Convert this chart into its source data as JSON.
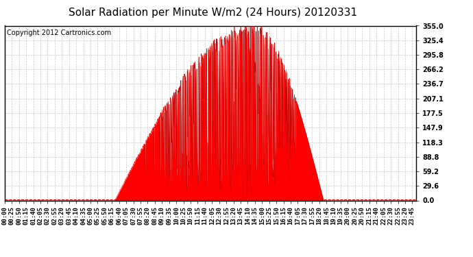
{
  "title": "Solar Radiation per Minute W/m2 (24 Hours) 20120331",
  "copyright": "Copyright 2012 Cartronics.com",
  "y_ticks": [
    0.0,
    29.6,
    59.2,
    88.8,
    118.3,
    147.9,
    177.5,
    207.1,
    236.7,
    266.2,
    295.8,
    325.4,
    355.0
  ],
  "ylim": [
    0.0,
    355.0
  ],
  "fill_color": "#FF0000",
  "line_color": "#CC0000",
  "background_color": "#FFFFFF",
  "grid_color": "#BBBBBB",
  "dashed_line_color": "#CC0000",
  "title_fontsize": 11,
  "copyright_fontsize": 7,
  "tick_fontsize": 7,
  "num_minutes": 1440,
  "tick_step": 25,
  "sunrise": 385,
  "sunset": 1115,
  "peak_time": 868
}
